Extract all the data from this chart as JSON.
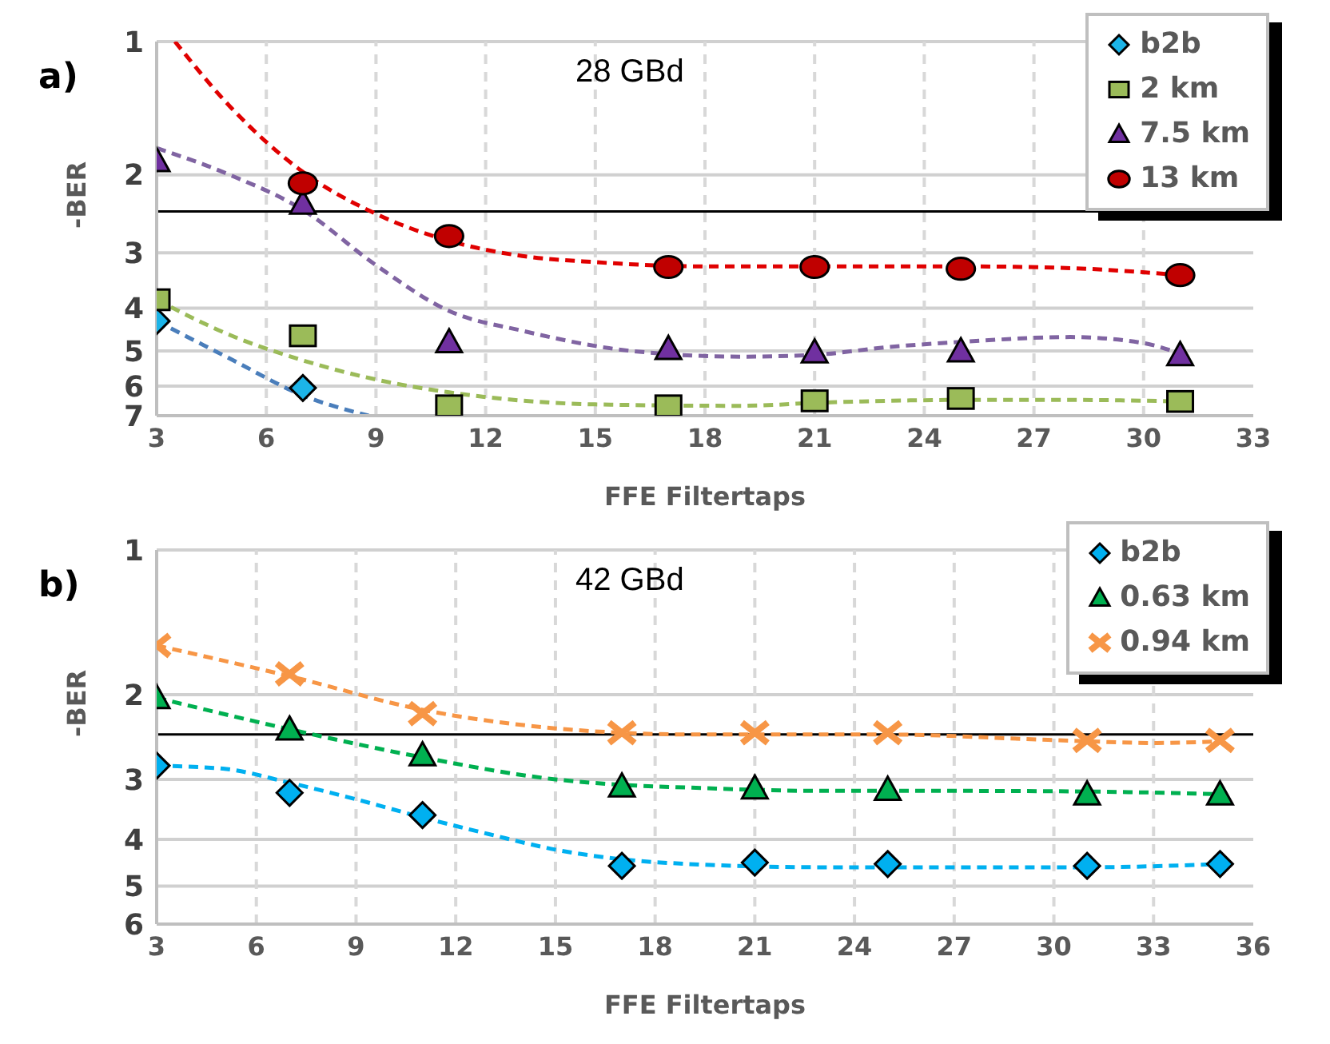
{
  "chart_data": [
    {
      "type": "scatter",
      "annotations": [
        "a)",
        "28 GBd"
      ],
      "xlabel": "FFE Filtertaps",
      "ylabel": "-BER",
      "xlim": [
        3,
        33
      ],
      "xticks": [
        3,
        6,
        9,
        12,
        15,
        18,
        21,
        24,
        27,
        30,
        33
      ],
      "ylim": [
        7,
        1
      ],
      "yticks": [
        1,
        2,
        3,
        4,
        5,
        6,
        7
      ],
      "log": true,
      "grid": true,
      "legend": "top right",
      "ref_lines": [
        {
          "axis": "y",
          "value": 2.42,
          "color": "#000000",
          "line_style": "solid"
        }
      ],
      "series": [
        {
          "type": "line",
          "color": "#4a7ebb",
          "marker": "none",
          "line_style": "dashed",
          "x": [
            3,
            5,
            7,
            8.8
          ],
          "values": [
            4.28,
            5.2,
            6.3,
            7
          ]
        },
        {
          "type": "line",
          "color": "#9bbb59",
          "marker": "none",
          "line_style": "dashed",
          "x": [
            3,
            5,
            7,
            9,
            11,
            15,
            19,
            21,
            25,
            28,
            31
          ],
          "values": [
            3.83,
            4.6,
            5.25,
            5.8,
            6.2,
            6.6,
            6.65,
            6.55,
            6.45,
            6.45,
            6.5
          ]
        },
        {
          "type": "line",
          "color": "#8064a2",
          "marker": "none",
          "line_style": "dashed",
          "x": [
            3,
            5,
            7,
            9,
            11,
            13,
            16,
            19,
            21,
            23,
            25,
            28,
            30,
            31
          ],
          "values": [
            1.74,
            2.0,
            2.4,
            3.2,
            4.06,
            4.5,
            5.0,
            5.15,
            5.1,
            4.9,
            4.77,
            4.65,
            4.8,
            5.07
          ]
        },
        {
          "type": "line",
          "color": "#e00000",
          "marker": "none",
          "line_style": "dashed",
          "x": [
            3.5,
            5,
            7,
            9,
            11,
            13,
            15,
            18,
            21,
            25,
            28,
            31
          ],
          "values": [
            1.0,
            1.4,
            1.97,
            2.45,
            2.82,
            3.05,
            3.15,
            3.22,
            3.22,
            3.22,
            3.25,
            3.37
          ]
        },
        {
          "name": "b2b",
          "color": "#1cb4e8",
          "marker": "diamond",
          "x": [
            3,
            7
          ],
          "values": [
            4.28,
            6.06
          ]
        },
        {
          "name": "2 km",
          "color": "#9bbb59",
          "marker": "square",
          "x": [
            3,
            7,
            11,
            17,
            21,
            25,
            31
          ],
          "values": [
            3.83,
            4.62,
            6.65,
            6.65,
            6.48,
            6.4,
            6.5
          ]
        },
        {
          "name": "7.5 km",
          "color": "#7030a0",
          "marker": "triangle",
          "x": [
            3,
            7,
            11,
            17,
            21,
            25,
            31
          ],
          "values": [
            1.86,
            2.32,
            4.77,
            4.94,
            5.03,
            5.0,
            5.1
          ]
        },
        {
          "name": "13 km",
          "color": "#c00000",
          "marker": "circle",
          "x": [
            7,
            11,
            17,
            21,
            25,
            31
          ],
          "values": [
            2.09,
            2.75,
            3.23,
            3.23,
            3.26,
            3.37
          ]
        }
      ]
    },
    {
      "type": "scatter",
      "annotations": [
        "b)",
        "42 GBd"
      ],
      "xlabel": "FFE Filtertaps",
      "ylabel": "-BER",
      "xlim": [
        3,
        36
      ],
      "xticks": [
        3,
        6,
        9,
        12,
        15,
        18,
        21,
        24,
        27,
        30,
        33,
        36
      ],
      "ylim": [
        6,
        1
      ],
      "yticks": [
        1,
        2,
        3,
        4,
        5,
        6
      ],
      "log": true,
      "grid": true,
      "legend": "top right",
      "ref_lines": [
        {
          "axis": "y",
          "value": 2.42,
          "color": "#000000",
          "line_style": "solid"
        }
      ],
      "series": [
        {
          "type": "line",
          "color": "#00b0f0",
          "marker": "none",
          "line_style": "dashed",
          "x": [
            3,
            5,
            7,
            9,
            11,
            13,
            15,
            17,
            19,
            21,
            23,
            27,
            31,
            35
          ],
          "values": [
            2.81,
            2.85,
            3.05,
            3.3,
            3.6,
            3.9,
            4.2,
            4.4,
            4.5,
            4.55,
            4.57,
            4.57,
            4.57,
            4.5
          ]
        },
        {
          "type": "line",
          "color": "#00b050",
          "marker": "none",
          "line_style": "dashed",
          "x": [
            3,
            7,
            11,
            15,
            17,
            19,
            23,
            27,
            31,
            35
          ],
          "values": [
            2.03,
            2.36,
            2.7,
            3.0,
            3.08,
            3.12,
            3.17,
            3.17,
            3.18,
            3.22
          ]
        },
        {
          "type": "line",
          "color": "#f79646",
          "marker": "none",
          "line_style": "dashed",
          "x": [
            3,
            7,
            11,
            15,
            17,
            19,
            25,
            29,
            31,
            33,
            35
          ],
          "values": [
            1.58,
            1.83,
            2.15,
            2.35,
            2.4,
            2.42,
            2.42,
            2.47,
            2.5,
            2.52,
            2.5
          ]
        },
        {
          "name": "b2b",
          "color": "#00b0f0",
          "marker": "diamond",
          "x": [
            3,
            7,
            11,
            17,
            21,
            25,
            31,
            35
          ],
          "values": [
            2.81,
            3.2,
            3.56,
            4.54,
            4.47,
            4.5,
            4.54,
            4.5
          ]
        },
        {
          "name": "0.63 km",
          "color": "#00b050",
          "marker": "triangle",
          "x": [
            3,
            7,
            11,
            17,
            21,
            25,
            31,
            35
          ],
          "values": [
            2.03,
            2.36,
            2.67,
            3.1,
            3.13,
            3.15,
            3.22,
            3.22
          ]
        },
        {
          "name": "0.94 km",
          "color": "#f79646",
          "marker": "cross",
          "x": [
            3,
            7,
            11,
            17,
            21,
            25,
            31,
            35
          ],
          "values": [
            1.58,
            1.81,
            2.19,
            2.4,
            2.4,
            2.4,
            2.49,
            2.49
          ]
        }
      ]
    }
  ]
}
